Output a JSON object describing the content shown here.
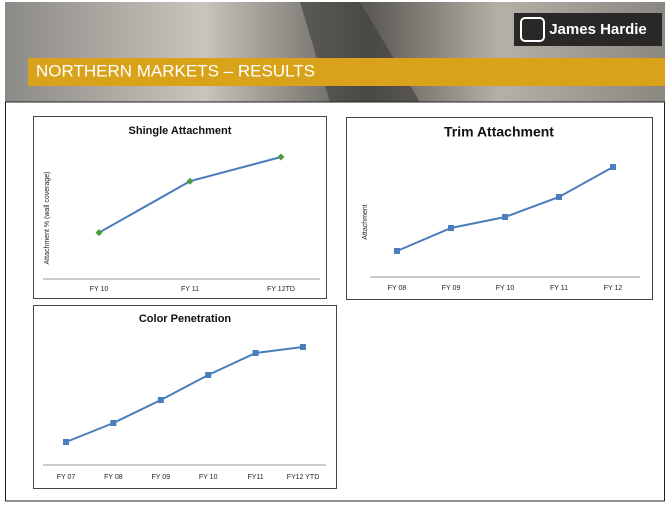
{
  "header": {
    "title": "NORTHERN MARKETS – RESULTS",
    "logo": "James Hardie"
  },
  "chart_data": [
    {
      "type": "line",
      "title": "Shingle Attachment",
      "y_label": "Attachment % (wall coverage)",
      "categories": [
        "FY 10",
        "FY 11",
        "FY 12TD"
      ],
      "series": [
        {
          "color": "#4a7ebb",
          "marker": "diamond",
          "marker_color": "#4e9a3e",
          "values": [
            46,
            97,
            121
          ]
        }
      ]
    },
    {
      "type": "line",
      "title": "Trim Attachment",
      "y_label": "Attachment",
      "categories": [
        "FY 08",
        "FY 09",
        "FY 10",
        "FY 11",
        "FY 12"
      ],
      "series": [
        {
          "color": "#4a7ebb",
          "marker": "square",
          "marker_color": "#4a7ebb",
          "values": [
            26,
            49,
            60,
            80,
            110
          ]
        }
      ]
    },
    {
      "type": "line",
      "title": "Color Penetration",
      "categories": [
        "FY 07",
        "FY 08",
        "FY 09",
        "FY 10",
        "FY11",
        "FY12 YTD"
      ],
      "series": [
        {
          "color": "#4a7ebb",
          "marker": "square",
          "marker_color": "#4a7ebb",
          "values": [
            23,
            42,
            65,
            90,
            112,
            118
          ]
        }
      ]
    }
  ]
}
